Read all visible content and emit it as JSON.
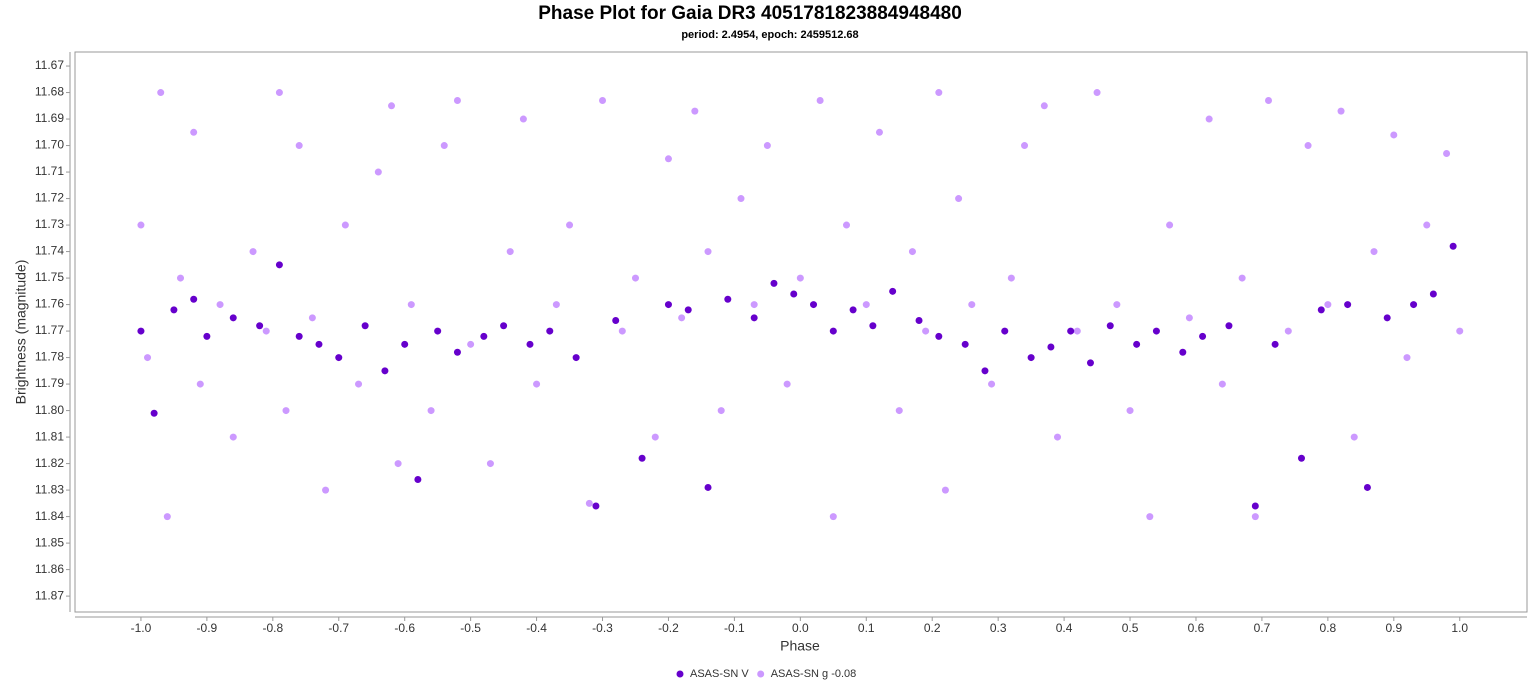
{
  "chart_data": {
    "type": "scatter",
    "title": "Phase Plot for Gaia DR3 4051781823884948480",
    "subtitle": "period: 2.4954, epoch: 2459512.68",
    "x_label": "Phase",
    "y_label": "Brightness (magnitude)",
    "xlim": [
      -1.1,
      1.102
    ],
    "ylim": [
      11.876,
      11.6647
    ],
    "xticks": [
      {
        "value": -1.0,
        "label": "-1.0"
      },
      -0.9,
      -0.8,
      -0.7,
      -0.6,
      -0.5,
      -0.4,
      -0.3,
      -0.2,
      -0.1,
      {
        "value": 0.0,
        "label": "0.0"
      },
      0.1,
      0.2,
      0.3,
      0.4,
      0.5,
      0.6,
      0.7,
      0.8,
      0.9,
      {
        "value": 1.0,
        "label": "1.0"
      }
    ],
    "yticks": [
      11.67,
      11.68,
      11.69,
      {
        "value": 11.7,
        "label": "11.70"
      },
      11.71,
      11.72,
      11.73,
      11.74,
      11.75,
      11.76,
      11.77,
      11.78,
      11.79,
      {
        "value": 11.8,
        "label": "11.80"
      },
      11.81,
      11.82,
      11.83,
      11.84,
      11.85,
      11.86,
      11.87
    ],
    "grid": false,
    "legend": "bottom",
    "series": [
      {
        "name": "ASAS-SN V",
        "color": "#6600cc",
        "x": [
          -1.0,
          -0.98,
          -0.95,
          -0.92,
          -0.9,
          -0.86,
          -0.82,
          -0.79,
          -0.76,
          -0.73,
          -0.7,
          -0.66,
          -0.63,
          -0.6,
          -0.58,
          -0.55,
          -0.52,
          -0.48,
          -0.45,
          -0.41,
          -0.38,
          -0.34,
          -0.31,
          -0.28,
          -0.24,
          -0.2,
          -0.17,
          -0.14,
          -0.11,
          -0.07,
          -0.04,
          -0.01,
          0.02,
          0.05,
          0.08,
          0.11,
          0.14,
          0.18,
          0.21,
          0.25,
          0.28,
          0.31,
          0.35,
          0.38,
          0.41,
          0.44,
          0.47,
          0.51,
          0.54,
          0.58,
          0.61,
          0.65,
          0.69,
          0.72,
          0.76,
          0.79,
          0.83,
          0.86,
          0.89,
          0.93,
          0.96,
          0.99
        ],
        "values": [
          11.77,
          11.801,
          11.762,
          11.758,
          11.772,
          11.765,
          11.768,
          11.745,
          11.772,
          11.775,
          11.78,
          11.768,
          11.785,
          11.775,
          11.826,
          11.77,
          11.778,
          11.772,
          11.768,
          11.775,
          11.77,
          11.78,
          11.836,
          11.766,
          11.818,
          11.76,
          11.762,
          11.829,
          11.758,
          11.765,
          11.752,
          11.756,
          11.76,
          11.77,
          11.762,
          11.768,
          11.755,
          11.766,
          11.772,
          11.775,
          11.785,
          11.77,
          11.78,
          11.776,
          11.77,
          11.782,
          11.768,
          11.775,
          11.77,
          11.778,
          11.772,
          11.768,
          11.836,
          11.775,
          11.818,
          11.762,
          11.76,
          11.829,
          11.765,
          11.76,
          11.756,
          11.738
        ]
      },
      {
        "name": "ASAS-SN g -0.08",
        "color": "#cc99ff",
        "x": [
          -1.0,
          -0.99,
          -0.97,
          -0.96,
          -0.94,
          -0.92,
          -0.91,
          -0.88,
          -0.86,
          -0.83,
          -0.81,
          -0.79,
          -0.78,
          -0.76,
          -0.74,
          -0.72,
          -0.69,
          -0.67,
          -0.64,
          -0.62,
          -0.61,
          -0.59,
          -0.56,
          -0.54,
          -0.52,
          -0.5,
          -0.47,
          -0.44,
          -0.42,
          -0.4,
          -0.37,
          -0.35,
          -0.32,
          -0.3,
          -0.27,
          -0.25,
          -0.22,
          -0.2,
          -0.18,
          -0.16,
          -0.14,
          -0.12,
          -0.09,
          -0.07,
          -0.05,
          -0.02,
          0.0,
          0.03,
          0.05,
          0.07,
          0.1,
          0.12,
          0.15,
          0.17,
          0.19,
          0.21,
          0.22,
          0.24,
          0.26,
          0.29,
          0.32,
          0.34,
          0.37,
          0.39,
          0.42,
          0.45,
          0.48,
          0.5,
          0.53,
          0.56,
          0.59,
          0.62,
          0.64,
          0.67,
          0.69,
          0.71,
          0.74,
          0.77,
          0.8,
          0.82,
          0.84,
          0.87,
          0.9,
          0.92,
          0.95,
          0.98,
          1.0
        ],
        "values": [
          11.73,
          11.78,
          11.68,
          11.84,
          11.75,
          11.695,
          11.79,
          11.76,
          11.81,
          11.74,
          11.77,
          11.68,
          11.8,
          11.7,
          11.765,
          11.83,
          11.73,
          11.79,
          11.71,
          11.685,
          11.82,
          11.76,
          11.8,
          11.7,
          11.683,
          11.775,
          11.82,
          11.74,
          11.69,
          11.79,
          11.76,
          11.73,
          11.835,
          11.683,
          11.77,
          11.75,
          11.81,
          11.705,
          11.765,
          11.687,
          11.74,
          11.8,
          11.72,
          11.76,
          11.7,
          11.79,
          11.75,
          11.683,
          11.84,
          11.73,
          11.76,
          11.695,
          11.8,
          11.74,
          11.77,
          11.68,
          11.83,
          11.72,
          11.76,
          11.79,
          11.75,
          11.7,
          11.685,
          11.81,
          11.77,
          11.68,
          11.76,
          11.8,
          11.84,
          11.73,
          11.765,
          11.69,
          11.79,
          11.75,
          11.84,
          11.683,
          11.77,
          11.7,
          11.76,
          11.687,
          11.81,
          11.74,
          11.696,
          11.78,
          11.73,
          11.703,
          11.77
        ]
      }
    ]
  }
}
